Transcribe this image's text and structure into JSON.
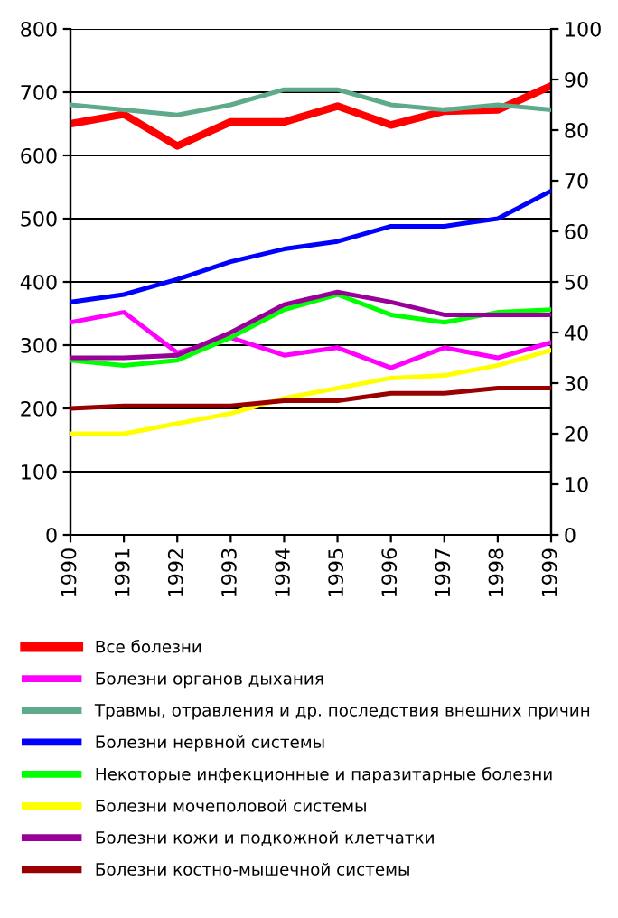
{
  "chart_data": {
    "type": "line",
    "categories": [
      "1990",
      "1991",
      "1992",
      "1993",
      "1994",
      "1995",
      "1996",
      "1997",
      "1998",
      "1999"
    ],
    "ylim": [
      0,
      800
    ],
    "yticks": [
      0,
      100,
      200,
      300,
      400,
      500,
      600,
      700,
      800
    ],
    "y2lim": [
      0,
      100
    ],
    "y2ticks": [
      0,
      10,
      20,
      30,
      40,
      50,
      60,
      70,
      80,
      90,
      100
    ],
    "grid": "y",
    "legend": "bottom",
    "series": [
      {
        "name": "Все болезни",
        "color": "#ff0000",
        "values": [
          650,
          665,
          615,
          653,
          653,
          678,
          648,
          670,
          672,
          710
        ]
      },
      {
        "name": "Болезни органов дыхания",
        "color": "#ff00ff",
        "axis": "y2",
        "values": [
          42,
          44,
          36,
          39,
          35.5,
          37,
          33,
          37,
          35,
          38
        ]
      },
      {
        "name": "Травмы, отравления и др. последствия внешних причин",
        "color": "#5faa8a",
        "axis": "y2",
        "values": [
          85,
          84,
          83,
          85,
          88,
          88,
          85,
          84,
          85,
          84
        ]
      },
      {
        "name": "Болезни нервной системы",
        "color": "#0000ff",
        "axis": "y2",
        "values": [
          46,
          47.5,
          50.5,
          54,
          56.5,
          58,
          61,
          61,
          62.5,
          68
        ]
      },
      {
        "name": "Некоторые инфекционные и паразитарные болезни",
        "color": "#00ff00",
        "axis": "y2",
        "values": [
          34.5,
          33.5,
          34.5,
          39,
          44.5,
          47.5,
          43.5,
          42,
          44,
          44.5
        ]
      },
      {
        "name": "Болезни мочеполовой системы",
        "color": "#ffff00",
        "axis": "y2",
        "values": [
          20,
          20,
          22,
          24,
          27,
          29,
          31,
          31.5,
          33.5,
          36.5
        ]
      },
      {
        "name": "Болезни кожи и подкожной клетчатки",
        "color": "#990099",
        "axis": "y2",
        "values": [
          35,
          35,
          35.5,
          40,
          45.5,
          48,
          46,
          43.5,
          43.5,
          43.5
        ]
      },
      {
        "name": "Болезни костно-мышечной системы",
        "color": "#990000",
        "axis": "y2",
        "values": [
          25,
          25.5,
          25.5,
          25.5,
          26.5,
          26.5,
          28,
          28,
          29,
          29
        ]
      }
    ]
  }
}
